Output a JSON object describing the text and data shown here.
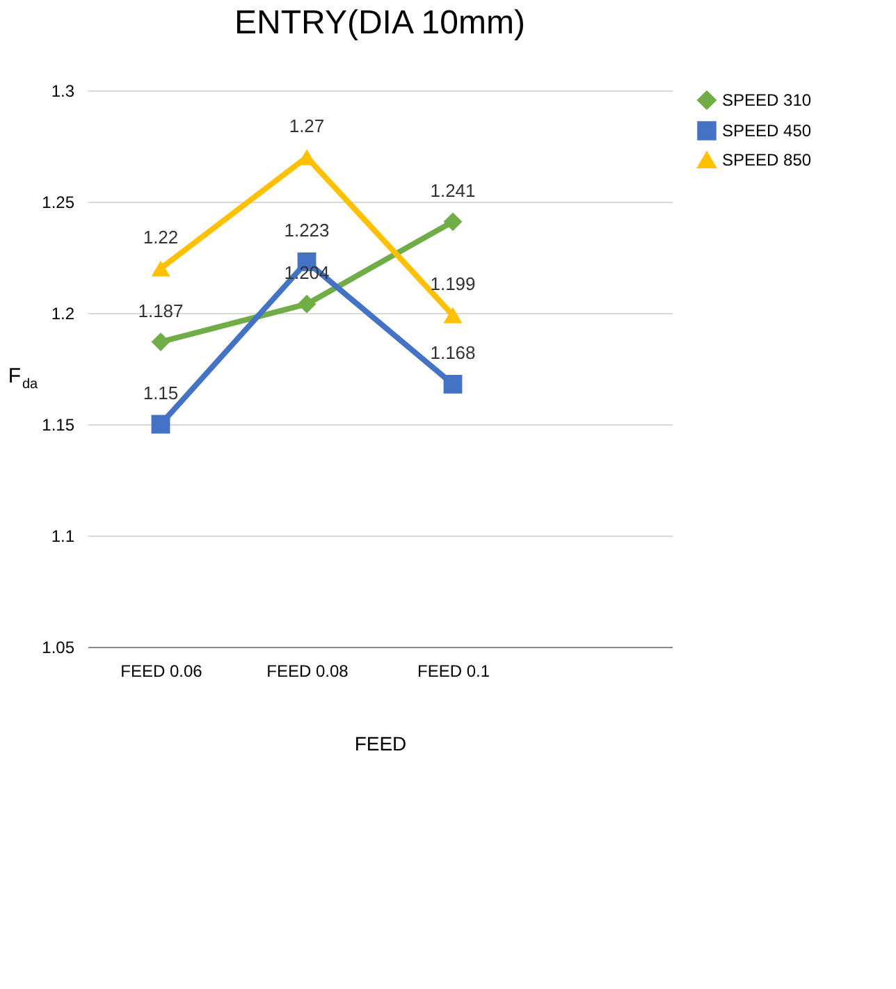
{
  "chart_data": {
    "type": "line",
    "title": "ENTRY(DIA 10mm)",
    "xlabel": "FEED",
    "ylabel": "F$_{da}$",
    "categories": [
      "FEED 0.06",
      "FEED 0.08",
      "FEED 0.1",
      null
    ],
    "series": [
      {
        "name": "SPEED 310",
        "color": "#70ad47",
        "marker": "diamond",
        "values": [
          1.187,
          1.204,
          1.241,
          null
        ]
      },
      {
        "name": "SPEED 450",
        "color": "#4472c4",
        "marker": "square",
        "values": [
          1.15,
          1.223,
          1.168,
          null
        ]
      },
      {
        "name": "SPEED 850",
        "color": "#ffc000",
        "marker": "triangle",
        "values": [
          1.22,
          1.27,
          1.199,
          null
        ]
      }
    ],
    "ylim": [
      1.05,
      1.3
    ],
    "yticks": [
      1.05,
      1.1,
      1.15,
      1.2,
      1.25,
      1.3
    ],
    "grid": "y",
    "legend": "right",
    "data_labels": true,
    "line_style": "solid"
  }
}
